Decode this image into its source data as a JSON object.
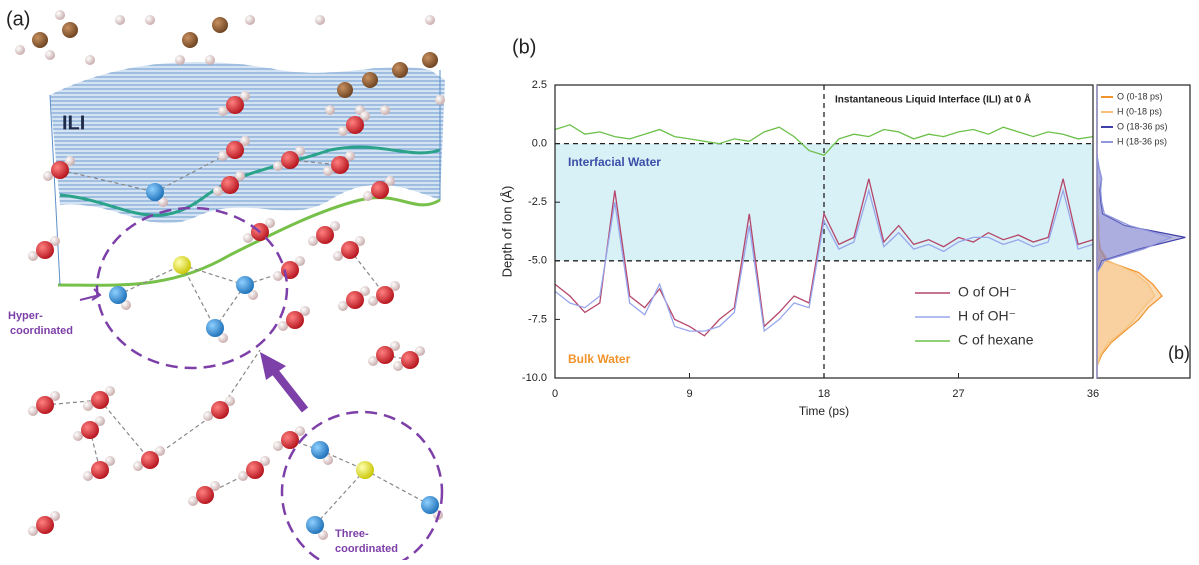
{
  "panel_a": {
    "label": "(a)",
    "ili": "ILI",
    "hyper_coordinated": [
      "Hyper-",
      "coordinated"
    ],
    "three_coordinated": [
      "Three-",
      "coordinated"
    ]
  },
  "chart_data": [
    {
      "type": "line",
      "title": "(b)",
      "xlabel": "Time (ps)",
      "ylabel": "Depth of Ion (Å)",
      "annotations": [
        "Instantaneous Liquid Interface (ILI) at 0 Å",
        "Interfacial Water",
        "Bulk Water"
      ],
      "x": [
        0,
        1,
        2,
        3,
        4,
        5,
        6,
        7,
        8,
        9,
        10,
        11,
        12,
        13,
        14,
        15,
        16,
        17,
        18,
        19,
        20,
        21,
        22,
        23,
        24,
        25,
        26,
        27,
        28,
        29,
        30,
        31,
        32,
        33,
        34,
        35,
        36
      ],
      "series": [
        {
          "name": "O of OH⁻",
          "color": "#b5466a",
          "values": [
            -6.0,
            -6.5,
            -7.2,
            -6.8,
            -2.0,
            -6.5,
            -7.0,
            -6.2,
            -7.5,
            -7.8,
            -8.2,
            -7.5,
            -7.0,
            -3.0,
            -7.8,
            -7.2,
            -6.5,
            -6.8,
            -3.0,
            -4.3,
            -4.0,
            -1.5,
            -4.2,
            -3.5,
            -4.3,
            -4.1,
            -4.4,
            -4.0,
            -4.2,
            -3.8,
            -4.1,
            -3.9,
            -4.2,
            -4.0,
            -1.5,
            -4.3,
            -4.1
          ]
        },
        {
          "name": "H of OH⁻",
          "color": "#98a6ec",
          "values": [
            -6.3,
            -6.8,
            -7.0,
            -6.5,
            -2.5,
            -6.8,
            -7.3,
            -6.0,
            -7.8,
            -8.0,
            -8.0,
            -7.8,
            -7.2,
            -3.5,
            -8.0,
            -7.5,
            -6.8,
            -7.0,
            -3.3,
            -4.5,
            -4.2,
            -2.0,
            -4.4,
            -3.8,
            -4.5,
            -4.3,
            -4.6,
            -4.2,
            -4.0,
            -4.0,
            -4.3,
            -4.1,
            -4.4,
            -4.2,
            -2.0,
            -4.5,
            -4.3
          ]
        },
        {
          "name": "C of hexane",
          "color": "#6cc04a",
          "values": [
            0.6,
            0.8,
            0.4,
            0.5,
            0.3,
            0.2,
            0.4,
            0.6,
            0.3,
            0.2,
            0.1,
            0.0,
            0.2,
            0.1,
            0.5,
            0.7,
            0.3,
            -0.3,
            -0.5,
            0.2,
            0.4,
            0.3,
            0.6,
            0.5,
            0.2,
            0.4,
            0.3,
            0.5,
            0.6,
            0.4,
            0.7,
            0.5,
            0.3,
            0.5,
            0.4,
            0.2,
            0.3
          ]
        }
      ],
      "xlim": [
        0,
        36
      ],
      "xticks": [
        0,
        9,
        18,
        27,
        36
      ],
      "ylim": [
        -10,
        2.5
      ],
      "yticks": [
        {
          "value": -10,
          "label": "-10.0"
        },
        -7.5,
        {
          "value": -5,
          "label": "-5.0"
        },
        -2.5,
        {
          "value": 0,
          "label": "0.0"
        },
        2.5
      ],
      "hlines": [
        0,
        -5
      ],
      "vlines": [
        18
      ]
    },
    {
      "type": "density",
      "title": "(b)",
      "x": [
        -10,
        -9.5,
        -9,
        -8.5,
        -8,
        -7.5,
        -7,
        -6.5,
        -6,
        -5.5,
        -5,
        -4.5,
        -4,
        -3.5,
        -3,
        -2.5,
        -2,
        -1.5,
        -1,
        -0.5,
        0,
        0.5,
        1,
        1.5,
        2,
        2.5
      ],
      "xlim": [
        -10,
        2.5
      ],
      "ylim": [
        0,
        1
      ],
      "series": [
        {
          "name": "O (0-18 ps)",
          "color": "#f0932b",
          "values": [
            0,
            0,
            0.05,
            0.15,
            0.3,
            0.45,
            0.55,
            0.7,
            0.6,
            0.45,
            0.1,
            0.03,
            0.02,
            0.02,
            0.01,
            0.01,
            0.01,
            0,
            0,
            0,
            0,
            0,
            0,
            0,
            0,
            0
          ]
        },
        {
          "name": "H (0-18 ps)",
          "color": "#f6c27a",
          "values": [
            0,
            0,
            0.04,
            0.12,
            0.28,
            0.4,
            0.5,
            0.62,
            0.55,
            0.4,
            0.12,
            0.04,
            0.02,
            0.02,
            0.01,
            0.01,
            0.01,
            0,
            0,
            0,
            0,
            0,
            0,
            0,
            0,
            0
          ]
        },
        {
          "name": "O (18-36 ps)",
          "color": "#3f3fa8",
          "values": [
            0,
            0,
            0,
            0,
            0,
            0,
            0,
            0,
            0,
            0,
            0.05,
            0.45,
            0.95,
            0.3,
            0.06,
            0.04,
            0.03,
            0.05,
            0.02,
            0,
            0,
            0,
            0,
            0,
            0,
            0
          ]
        },
        {
          "name": "H (18-36 ps)",
          "color": "#8f96dc",
          "values": [
            0,
            0,
            0,
            0,
            0,
            0,
            0,
            0,
            0,
            0,
            0.08,
            0.5,
            0.8,
            0.35,
            0.08,
            0.05,
            0.04,
            0.05,
            0.02,
            0,
            0,
            0,
            0,
            0,
            0,
            0
          ]
        }
      ]
    }
  ]
}
